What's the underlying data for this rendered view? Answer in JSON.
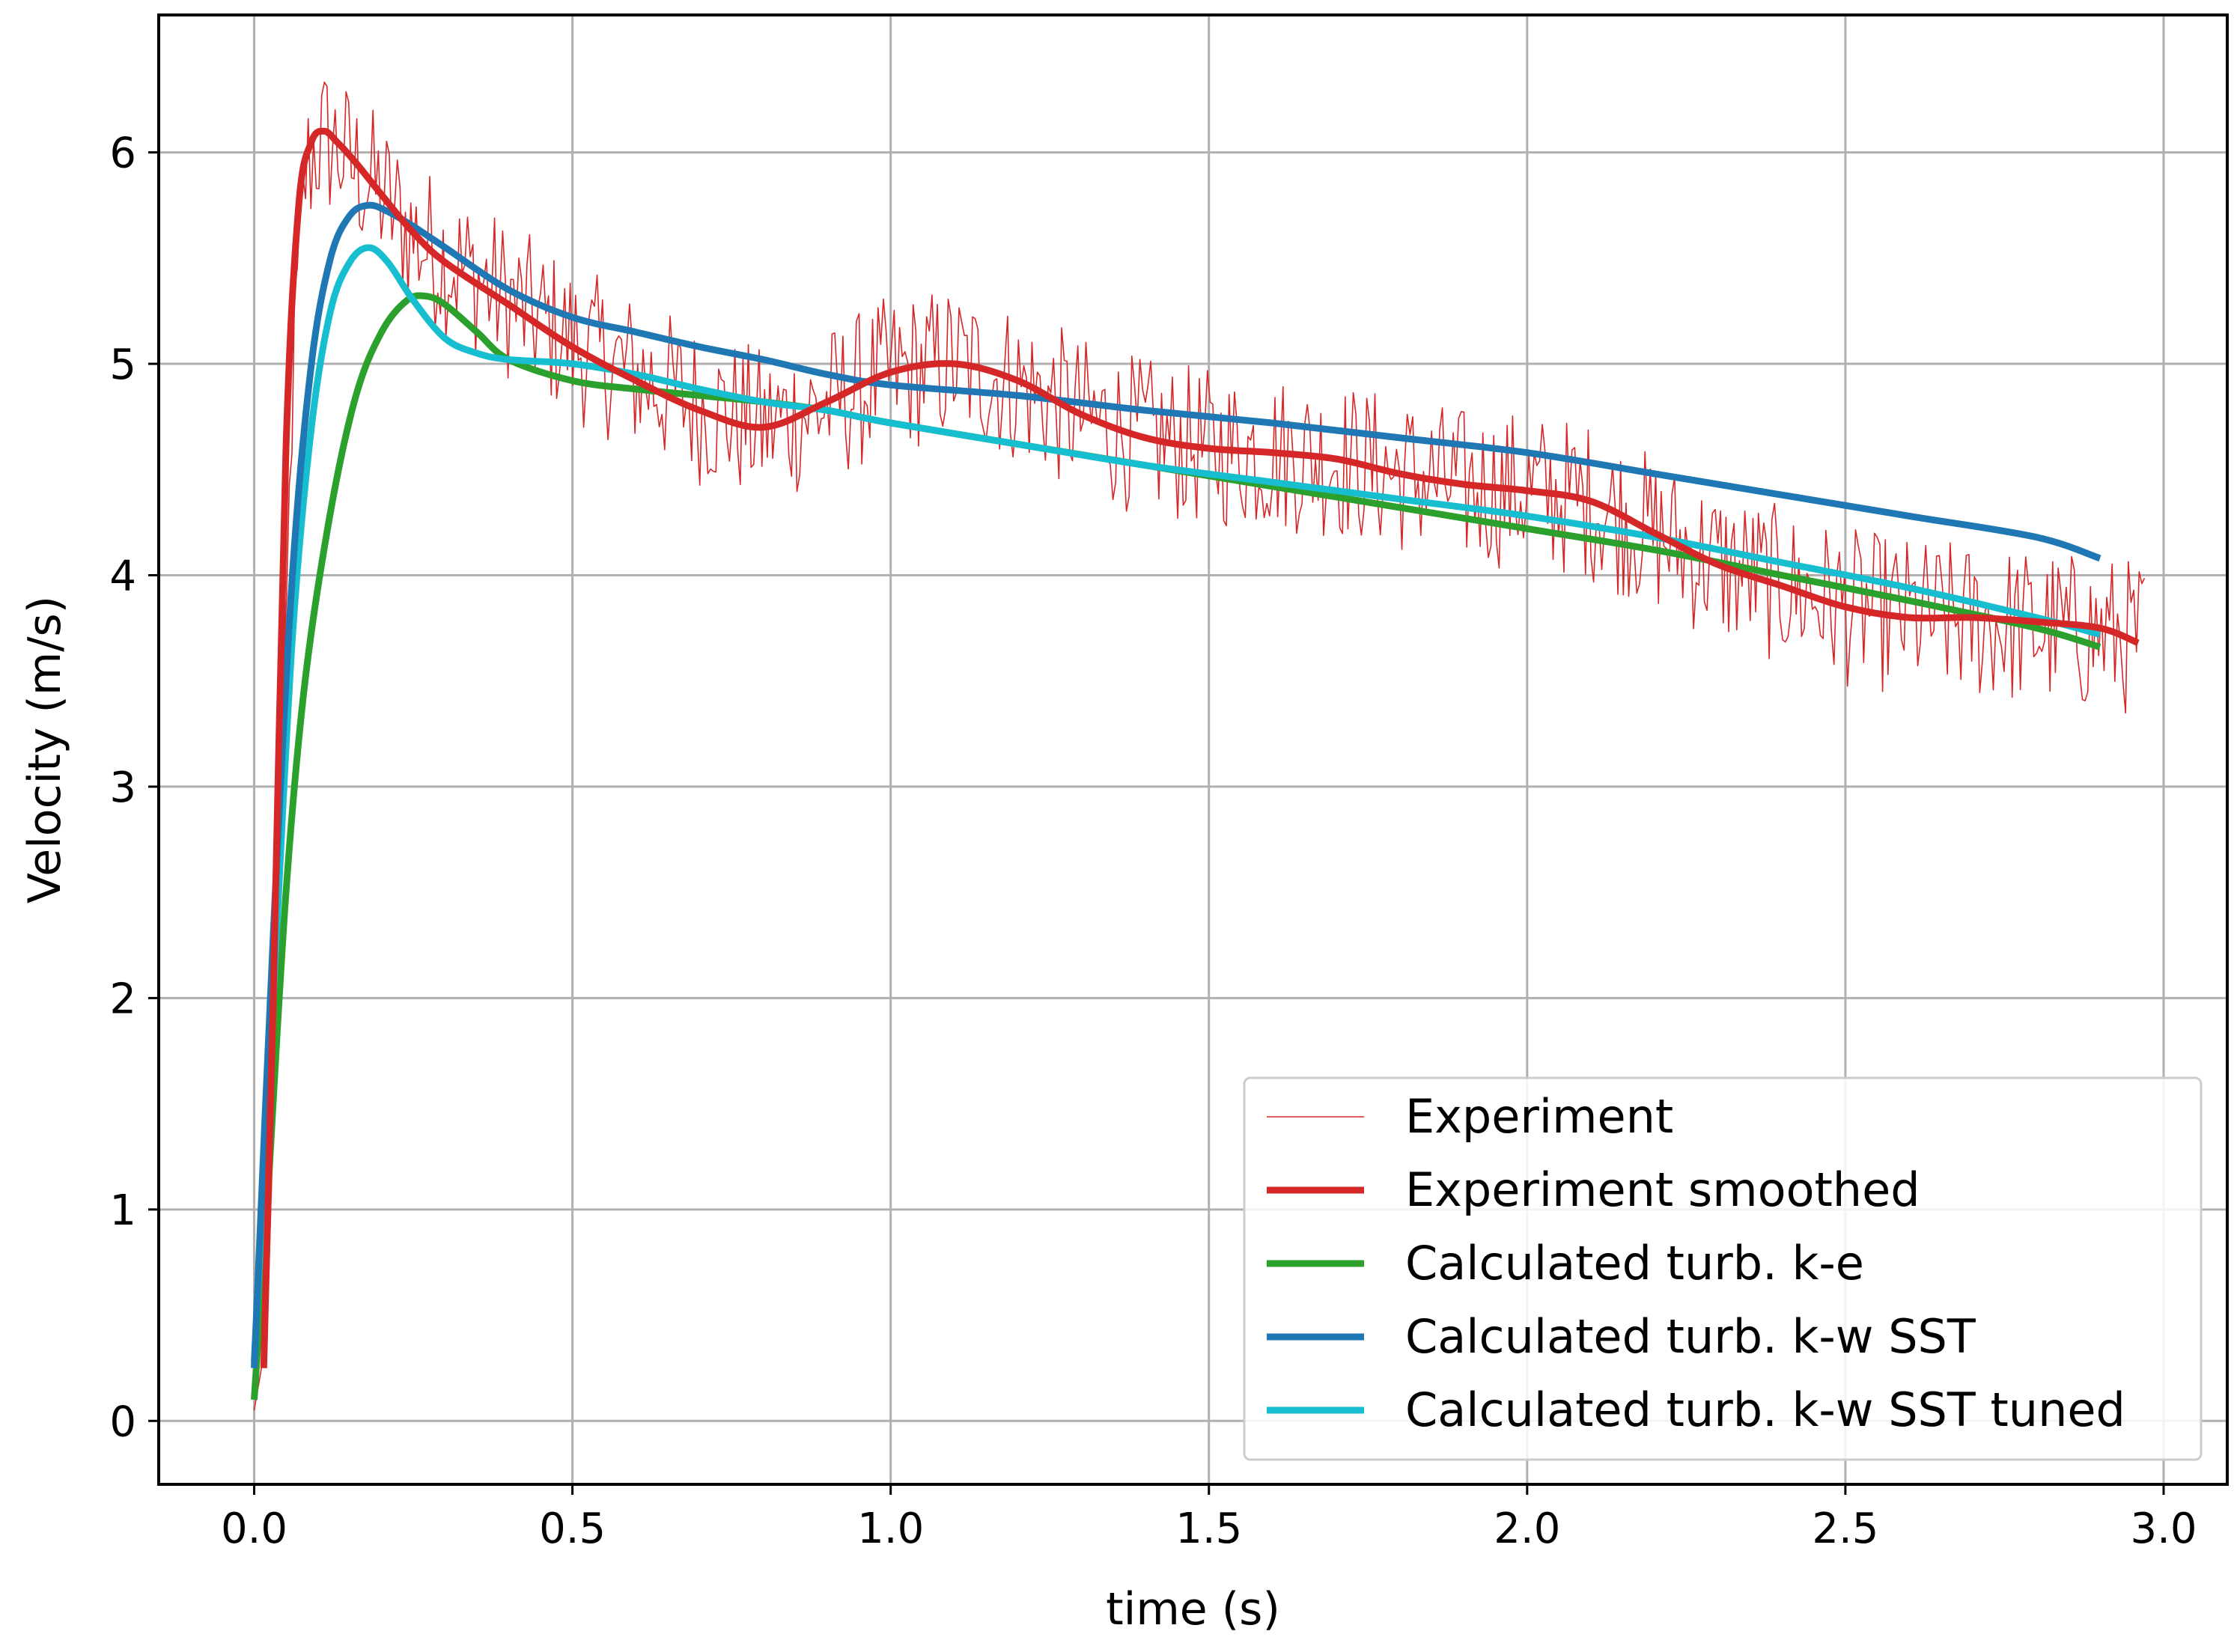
{
  "chart_data": {
    "type": "line",
    "title": "",
    "xlabel": "time (s)",
    "ylabel": "Velocity (m/s)",
    "xlim": [
      -0.15,
      3.1
    ],
    "ylim": [
      -0.3,
      6.65
    ],
    "xticks": [
      "0.0",
      "0.5",
      "1.0",
      "1.5",
      "2.0",
      "2.5",
      "3.0"
    ],
    "yticks": [
      "0",
      "1",
      "2",
      "3",
      "4",
      "5",
      "6"
    ],
    "grid": true,
    "legend_position": "lower-right",
    "series": [
      {
        "name": "Experiment",
        "color": "#d62728",
        "style": "thin-noisy",
        "x": [
          0.0,
          0.02,
          0.04,
          0.06,
          0.08,
          0.1,
          0.12,
          0.15,
          0.2,
          0.25,
          0.3,
          0.4,
          0.5,
          0.6,
          0.7,
          0.8,
          0.9,
          1.0,
          1.1,
          1.2,
          1.3,
          1.4,
          1.5,
          1.6,
          1.7,
          1.8,
          1.9,
          2.0,
          2.1,
          2.2,
          2.3,
          2.4,
          2.5,
          2.6,
          2.7,
          2.8,
          2.9,
          2.97
        ],
        "y": [
          0.05,
          0.4,
          2.4,
          4.9,
          5.9,
          6.05,
          6.05,
          5.95,
          5.8,
          5.6,
          5.5,
          5.3,
          5.1,
          4.95,
          4.8,
          4.7,
          4.8,
          4.95,
          5.0,
          4.9,
          4.75,
          4.65,
          4.6,
          4.58,
          4.55,
          4.48,
          4.42,
          4.4,
          4.35,
          4.2,
          4.05,
          3.95,
          3.85,
          3.8,
          3.78,
          3.75,
          3.72,
          3.7
        ],
        "noise_amplitude": 0.38
      },
      {
        "name": "Experiment smoothed",
        "color": "#d62728",
        "x": [
          0.015,
          0.03,
          0.05,
          0.07,
          0.09,
          0.11,
          0.13,
          0.16,
          0.2,
          0.25,
          0.3,
          0.4,
          0.5,
          0.6,
          0.7,
          0.8,
          0.9,
          1.0,
          1.1,
          1.2,
          1.3,
          1.4,
          1.5,
          1.6,
          1.7,
          1.8,
          1.9,
          2.0,
          2.1,
          2.2,
          2.3,
          2.4,
          2.5,
          2.6,
          2.7,
          2.8,
          2.9,
          2.96
        ],
        "y": [
          0.25,
          2.0,
          4.6,
          5.75,
          6.05,
          6.1,
          6.05,
          5.95,
          5.8,
          5.62,
          5.48,
          5.28,
          5.08,
          4.92,
          4.78,
          4.7,
          4.82,
          4.96,
          5.0,
          4.92,
          4.76,
          4.65,
          4.6,
          4.58,
          4.55,
          4.48,
          4.43,
          4.4,
          4.35,
          4.2,
          4.05,
          3.95,
          3.85,
          3.8,
          3.8,
          3.78,
          3.75,
          3.68
        ]
      },
      {
        "name": "Calculated turb. k-e",
        "color": "#2ca02c",
        "x": [
          0.0,
          0.02,
          0.05,
          0.08,
          0.12,
          0.16,
          0.2,
          0.24,
          0.27,
          0.3,
          0.35,
          0.4,
          0.5,
          0.6,
          0.7,
          0.8,
          0.9,
          1.0,
          1.2,
          1.4,
          1.6,
          1.8,
          2.0,
          2.2,
          2.4,
          2.6,
          2.8,
          2.9
        ],
        "y": [
          0.1,
          1.0,
          2.5,
          3.5,
          4.3,
          4.85,
          5.15,
          5.3,
          5.32,
          5.28,
          5.15,
          5.02,
          4.92,
          4.88,
          4.85,
          4.82,
          4.78,
          4.72,
          4.62,
          4.52,
          4.42,
          4.32,
          4.22,
          4.12,
          4.0,
          3.88,
          3.75,
          3.66
        ]
      },
      {
        "name": "Calculated turb. k-w SST",
        "color": "#1f77b4",
        "x": [
          0.0,
          0.03,
          0.06,
          0.09,
          0.12,
          0.15,
          0.18,
          0.21,
          0.25,
          0.3,
          0.4,
          0.5,
          0.6,
          0.7,
          0.8,
          0.9,
          1.0,
          1.2,
          1.4,
          1.6,
          1.8,
          2.0,
          2.2,
          2.4,
          2.6,
          2.8,
          2.9
        ],
        "y": [
          0.25,
          2.3,
          4.0,
          5.0,
          5.5,
          5.7,
          5.75,
          5.72,
          5.65,
          5.55,
          5.35,
          5.22,
          5.15,
          5.08,
          5.02,
          4.95,
          4.9,
          4.85,
          4.78,
          4.72,
          4.65,
          4.58,
          4.48,
          4.38,
          4.28,
          4.18,
          4.08
        ]
      },
      {
        "name": "Calculated turb. k-w SST tuned",
        "color": "#17becf",
        "x": [
          0.0,
          0.03,
          0.06,
          0.09,
          0.12,
          0.15,
          0.18,
          0.21,
          0.25,
          0.3,
          0.35,
          0.4,
          0.5,
          0.6,
          0.7,
          0.8,
          0.9,
          1.0,
          1.2,
          1.4,
          1.6,
          1.8,
          2.0,
          2.2,
          2.4,
          2.6,
          2.8,
          2.9
        ],
        "y": [
          0.28,
          2.0,
          3.7,
          4.7,
          5.25,
          5.48,
          5.55,
          5.48,
          5.3,
          5.12,
          5.05,
          5.02,
          5.0,
          4.95,
          4.88,
          4.82,
          4.78,
          4.72,
          4.62,
          4.52,
          4.44,
          4.36,
          4.28,
          4.18,
          4.06,
          3.94,
          3.8,
          3.72
        ]
      }
    ]
  }
}
